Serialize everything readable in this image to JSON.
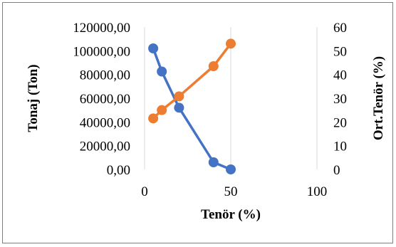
{
  "chart_data": {
    "type": "scatter",
    "title": "",
    "xlabel": "Tenör (%)",
    "ylabel_left": "Tonaj (Ton)",
    "ylabel_right": "Ort.Tenör (%)",
    "xlim": [
      0,
      100
    ],
    "x_ticks": [
      "0",
      "50",
      "100"
    ],
    "y_left_lim": [
      0,
      120000
    ],
    "y_left_ticks": [
      "0,00",
      "20000,00",
      "40000,00",
      "60000,00",
      "80000,00",
      "100000,00",
      "120000,00"
    ],
    "y_right_lim": [
      0,
      60
    ],
    "y_right_ticks": [
      "0",
      "10",
      "20",
      "30",
      "40",
      "50",
      "60"
    ],
    "grid": "vertical",
    "series": [
      {
        "axis": "left",
        "color": "#4472C4",
        "x": [
          5,
          10,
          20,
          40,
          50
        ],
        "y": [
          102000,
          82500,
          52000,
          6000,
          0
        ]
      },
      {
        "axis": "right",
        "color": "#ED7D31",
        "x": [
          5,
          10,
          20,
          40,
          50
        ],
        "y": [
          21.5,
          25,
          30.8,
          43.5,
          53
        ]
      }
    ]
  }
}
